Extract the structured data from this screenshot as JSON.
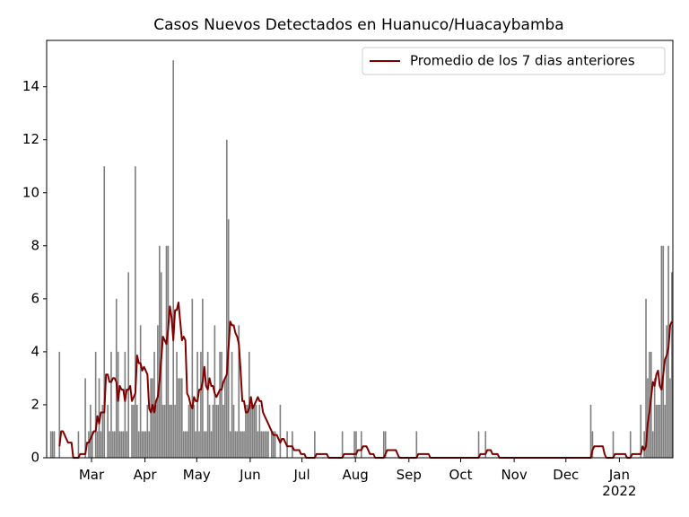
{
  "chart_data": {
    "type": "bar",
    "title": "Casos Nuevos Detectados en Huanuco/Huacaybamba",
    "xlim": [
      0,
      363
    ],
    "ylim": [
      0,
      15.75
    ],
    "yticks": [
      0,
      2,
      4,
      6,
      8,
      10,
      12,
      14
    ],
    "xticks": [
      {
        "value": 26,
        "label": "Mar"
      },
      {
        "value": 57,
        "label": "Apr"
      },
      {
        "value": 87,
        "label": "May"
      },
      {
        "value": 118,
        "label": "Jun"
      },
      {
        "value": 148,
        "label": "Jul"
      },
      {
        "value": 179,
        "label": "Aug"
      },
      {
        "value": 210,
        "label": "Sep"
      },
      {
        "value": 240,
        "label": "Oct"
      },
      {
        "value": 271,
        "label": "Nov"
      },
      {
        "value": 301,
        "label": "Dec"
      },
      {
        "value": 332,
        "label": "Jan\n2022"
      }
    ],
    "legend": "upper right",
    "x": [
      0,
      1,
      2,
      3,
      4,
      5,
      6,
      7,
      8,
      9,
      10,
      11,
      12,
      13,
      14,
      15,
      16,
      17,
      18,
      19,
      20,
      21,
      22,
      23,
      24,
      25,
      26,
      27,
      28,
      29,
      30,
      31,
      32,
      33,
      34,
      35,
      36,
      37,
      38,
      39,
      40,
      41,
      42,
      43,
      44,
      45,
      46,
      47,
      48,
      49,
      50,
      51,
      52,
      53,
      54,
      55,
      56,
      57,
      58,
      59,
      60,
      61,
      62,
      63,
      64,
      65,
      66,
      67,
      68,
      69,
      70,
      71,
      72,
      73,
      74,
      75,
      76,
      77,
      78,
      79,
      80,
      81,
      82,
      83,
      84,
      85,
      86,
      87,
      88,
      89,
      90,
      91,
      92,
      93,
      94,
      95,
      96,
      97,
      98,
      99,
      100,
      101,
      102,
      103,
      104,
      105,
      106,
      107,
      108,
      109,
      110,
      111,
      112,
      113,
      114,
      115,
      116,
      117,
      118,
      119,
      120,
      121,
      122,
      123,
      124,
      125,
      126,
      127,
      128,
      129,
      130,
      131,
      132,
      133,
      134,
      135,
      136,
      137,
      138,
      139,
      140,
      141,
      142,
      143,
      144,
      145,
      146,
      147,
      148,
      149,
      150,
      151,
      152,
      153,
      154,
      155,
      156,
      157,
      158,
      159,
      160,
      161,
      162,
      163,
      164,
      165,
      166,
      167,
      168,
      169,
      170,
      171,
      172,
      173,
      174,
      175,
      176,
      177,
      178,
      179,
      180,
      181,
      182,
      183,
      184,
      185,
      186,
      187,
      188,
      189,
      190,
      191,
      192,
      193,
      194,
      195,
      196,
      197,
      198,
      199,
      200,
      201,
      202,
      203,
      204,
      205,
      206,
      207,
      208,
      209,
      210,
      211,
      212,
      213,
      214,
      215,
      216,
      217,
      218,
      219,
      220,
      221,
      222,
      223,
      224,
      225,
      226,
      227,
      228,
      229,
      230,
      231,
      232,
      233,
      234,
      235,
      236,
      237,
      238,
      239,
      240,
      241,
      242,
      243,
      244,
      245,
      246,
      247,
      248,
      249,
      250,
      251,
      252,
      253,
      254,
      255,
      256,
      257,
      258,
      259,
      260,
      261,
      262,
      263,
      264,
      265,
      266,
      267,
      268,
      269,
      270,
      271,
      272,
      273,
      274,
      275,
      276,
      277,
      278,
      279,
      280,
      281,
      282,
      283,
      284,
      285,
      286,
      287,
      288,
      289,
      290,
      291,
      292,
      293,
      294,
      295,
      296,
      297,
      298,
      299,
      300,
      301,
      302,
      303,
      304,
      305,
      306,
      307,
      308,
      309,
      310,
      311,
      312,
      313,
      314,
      315,
      316,
      317,
      318,
      319,
      320,
      321,
      322,
      323,
      324,
      325,
      326,
      327,
      328,
      329,
      330,
      331,
      332,
      333,
      334,
      335,
      336,
      337,
      338,
      339,
      340,
      341,
      342,
      343,
      344,
      345,
      346,
      347,
      348,
      349,
      350,
      351,
      352,
      353,
      354,
      355,
      356,
      357,
      358,
      359,
      360,
      361,
      362
    ],
    "series": [
      {
        "type": "bar",
        "color": "#808080",
        "values": [
          0,
          0,
          1,
          1,
          1,
          0,
          0,
          4,
          0,
          0,
          0,
          0,
          0,
          0,
          0,
          0,
          0,
          0,
          1,
          0,
          0,
          0,
          3,
          0,
          1,
          2,
          1,
          0,
          4,
          1,
          3,
          1,
          2,
          11,
          0,
          2,
          1,
          4,
          1,
          1,
          6,
          4,
          1,
          1,
          1,
          4,
          1,
          7,
          0,
          2,
          2,
          11,
          2,
          1,
          5,
          1,
          1,
          1,
          2,
          1,
          3,
          3,
          4,
          2,
          5,
          8,
          7,
          2,
          2,
          8,
          8,
          2,
          2,
          15,
          2,
          4,
          3,
          3,
          3,
          1,
          1,
          1,
          2,
          2,
          6,
          2,
          1,
          4,
          1,
          4,
          6,
          1,
          1,
          4,
          2,
          1,
          2,
          5,
          2,
          2,
          4,
          4,
          2,
          3,
          12,
          9,
          1,
          4,
          2,
          1,
          1,
          5,
          1,
          1,
          1,
          2,
          2,
          4,
          2,
          2,
          2,
          2,
          1,
          2,
          1,
          1,
          1,
          1,
          1,
          0,
          1,
          1,
          1,
          0,
          0,
          2,
          0,
          0,
          0,
          1,
          0,
          0,
          1,
          0,
          0,
          0,
          0,
          0,
          0,
          0,
          0,
          0,
          0,
          0,
          0,
          1,
          0,
          0,
          0,
          0,
          0,
          0,
          0,
          0,
          0,
          0,
          0,
          0,
          0,
          0,
          0,
          1,
          0,
          0,
          0,
          0,
          0,
          0,
          1,
          1,
          0,
          0,
          1,
          0,
          0,
          0,
          0,
          0,
          0,
          0,
          0,
          0,
          0,
          0,
          0,
          1,
          1,
          0,
          0,
          0,
          0,
          0,
          0,
          0,
          0,
          0,
          0,
          0,
          0,
          0,
          0,
          0,
          0,
          0,
          1,
          0,
          0,
          0,
          0,
          0,
          0,
          0,
          0,
          0,
          0,
          0,
          0,
          0,
          0,
          0,
          0,
          0,
          0,
          0,
          0,
          0,
          0,
          0,
          0,
          0,
          0,
          0,
          0,
          0,
          0,
          0,
          0,
          0,
          0,
          0,
          1,
          0,
          0,
          0,
          1,
          0,
          0,
          0,
          0,
          0,
          0,
          0,
          0,
          0,
          0,
          0,
          0,
          0,
          0,
          0,
          0,
          0,
          0,
          0,
          0,
          0,
          0,
          0,
          0,
          0,
          0,
          0,
          0,
          0,
          0,
          0,
          0,
          0,
          0,
          0,
          0,
          0,
          0,
          0,
          0,
          0,
          0,
          0,
          0,
          0,
          0,
          0,
          0,
          0,
          0,
          0,
          0,
          0,
          0,
          0,
          0,
          0,
          0,
          0,
          0,
          2,
          1,
          0,
          0,
          0,
          0,
          0,
          0,
          0,
          0,
          0,
          0,
          0,
          1,
          0,
          0,
          0,
          0,
          0,
          0,
          0,
          0,
          0,
          1,
          0,
          0,
          0,
          0,
          0,
          2,
          0,
          1,
          6,
          3,
          4,
          4,
          1,
          3,
          2,
          2,
          2,
          8,
          8,
          2,
          5,
          8,
          3,
          7
        ]
      },
      {
        "type": "line",
        "name": "Promedio de los 7 dias anteriores",
        "color": "#800000",
        "values": [
          null,
          null,
          null,
          null,
          null,
          null,
          null,
          0.43,
          1,
          1,
          0.86,
          0.71,
          0.57,
          0.57,
          0.57,
          0,
          0,
          0,
          0,
          0.14,
          0.14,
          0.14,
          0.14,
          0.57,
          0.57,
          0.71,
          0.86,
          1,
          1,
          1.57,
          1.29,
          1.71,
          1.71,
          1.71,
          3.14,
          3.14,
          2.86,
          2.86,
          3,
          3,
          2.86,
          2.14,
          2.71,
          2.57,
          2.57,
          2.14,
          2.57,
          2.57,
          2.71,
          2.14,
          2.29,
          2.43,
          3.86,
          3.57,
          3.57,
          3.29,
          3.43,
          3.29,
          3.14,
          1.86,
          1.71,
          2,
          1.71,
          2.14,
          2.29,
          2.86,
          3.71,
          4.57,
          4.43,
          4.29,
          4.86,
          5.71,
          5.29,
          4.43,
          5.57,
          5.57,
          5.86,
          5.14,
          4.43,
          4.57,
          4.43,
          2.43,
          2.29,
          2,
          1.86,
          2.29,
          2.14,
          2.14,
          2.57,
          2.57,
          2.86,
          3.43,
          2.71,
          2.57,
          3,
          2.71,
          2.71,
          2.43,
          2.29,
          2.43,
          2.57,
          2.57,
          2.86,
          3,
          3.14,
          4.14,
          5.14,
          5,
          5,
          4.71,
          4.57,
          4.29,
          3.29,
          2.14,
          2.14,
          1.71,
          1.71,
          1.86,
          2.29,
          1.86,
          2,
          2.14,
          2.29,
          2.14,
          2.14,
          1.71,
          1.57,
          1.43,
          1.29,
          1.14,
          1,
          0.86,
          0.86,
          0.86,
          0.71,
          0.57,
          0.71,
          0.71,
          0.57,
          0.43,
          0.43,
          0.43,
          0.43,
          0.29,
          0.29,
          0.29,
          0.29,
          0.14,
          0.14,
          0.14,
          0,
          0,
          0,
          0,
          0,
          0,
          0.14,
          0.14,
          0.14,
          0.14,
          0.14,
          0.14,
          0.14,
          0,
          0,
          0,
          0,
          0,
          0,
          0,
          0,
          0,
          0.14,
          0.14,
          0.14,
          0.14,
          0.14,
          0.14,
          0.14,
          0.14,
          0.29,
          0.29,
          0.29,
          0.43,
          0.43,
          0.43,
          0.29,
          0.14,
          0.14,
          0.14,
          0,
          0,
          0,
          0,
          0,
          0,
          0.14,
          0.29,
          0.29,
          0.29,
          0.29,
          0.29,
          0.29,
          0.14,
          0,
          0,
          0,
          0,
          0,
          0,
          0,
          0,
          0,
          0,
          0,
          0.14,
          0.14,
          0.14,
          0.14,
          0.14,
          0.14,
          0.14,
          0,
          0,
          0,
          0,
          0,
          0,
          0,
          0,
          0,
          0,
          0,
          0,
          0,
          0,
          0,
          0,
          0,
          0,
          0,
          0,
          0,
          0,
          0,
          0,
          0,
          0,
          0,
          0,
          0,
          0.14,
          0.14,
          0.14,
          0.14,
          0.29,
          0.29,
          0.29,
          0.14,
          0.14,
          0.14,
          0.14,
          0,
          0,
          0,
          0,
          0,
          0,
          0,
          0,
          0,
          0,
          0,
          0,
          0,
          0,
          0,
          0,
          0,
          0,
          0,
          0,
          0,
          0,
          0,
          0,
          0,
          0,
          0,
          0,
          0,
          0,
          0,
          0,
          0,
          0,
          0,
          0,
          0,
          0,
          0,
          0,
          0,
          0,
          0,
          0,
          0,
          0,
          0,
          0,
          0,
          0,
          0,
          0,
          0,
          0,
          0.29,
          0.43,
          0.43,
          0.43,
          0.43,
          0.43,
          0.43,
          0.14,
          0,
          0,
          0,
          0,
          0,
          0.14,
          0.14,
          0.14,
          0.14,
          0.14,
          0.14,
          0.14,
          0,
          0,
          0,
          0.14,
          0.14,
          0.14,
          0.14,
          0.14,
          0.14,
          0.43,
          0.29,
          0.43,
          1.29,
          1.71,
          2.29,
          2.86,
          2.71,
          3.14,
          3.29,
          2.71,
          2.57,
          3.14,
          3.71,
          3.86,
          4.14,
          5,
          5.14
        ]
      }
    ]
  }
}
